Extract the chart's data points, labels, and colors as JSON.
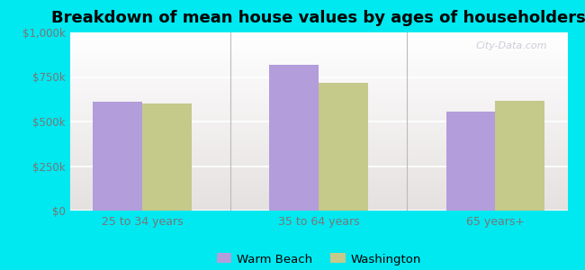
{
  "title": "Breakdown of mean house values by ages of householders",
  "categories": [
    "25 to 34 years",
    "35 to 64 years",
    "65 years+"
  ],
  "warm_beach": [
    610000,
    820000,
    555000
  ],
  "washington": [
    600000,
    715000,
    615000
  ],
  "warm_beach_color": "#b39ddb",
  "washington_color": "#c5c98a",
  "ylim": [
    0,
    1000000
  ],
  "yticks": [
    0,
    250000,
    500000,
    750000,
    1000000
  ],
  "ytick_labels": [
    "$0",
    "$250k",
    "$500k",
    "$750k",
    "$1,000k"
  ],
  "background_outer": "#00e8f0",
  "background_plot_top": "#f5f5f0",
  "background_plot_bottom": "#e8f5e8",
  "legend_labels": [
    "Warm Beach",
    "Washington"
  ],
  "watermark": "City-Data.com",
  "bar_width": 0.28,
  "title_fontsize": 13,
  "separator_color": "#bbbbbb",
  "grid_color": "#dddddd",
  "tick_label_color": "#777777"
}
